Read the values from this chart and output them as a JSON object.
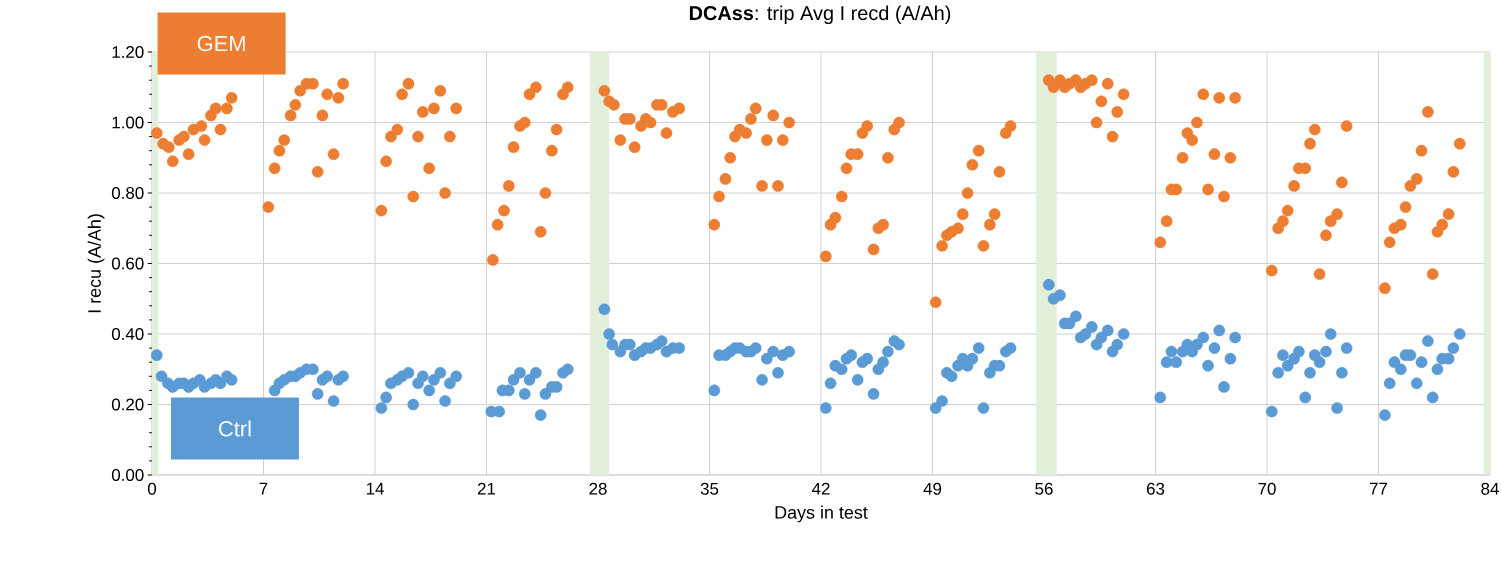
{
  "chart_data": {
    "type": "scatter",
    "title": "**DCAss**: trip Avg I recd (A/Ah)",
    "xlabel": "Days in test",
    "ylabel": "I recu (A/Ah)",
    "xlim": [
      0,
      84
    ],
    "xticks": [
      0,
      7,
      14,
      21,
      28,
      35,
      42,
      49,
      56,
      63,
      70,
      77,
      84
    ],
    "ylim": [
      0,
      1.2
    ],
    "yticks": [
      {
        "value": 0,
        "label": "0.00"
      },
      {
        "value": 0.2,
        "label": "0.20"
      },
      {
        "value": 0.4,
        "label": "0.40"
      },
      {
        "value": 0.6,
        "label": "0.60"
      },
      {
        "value": 0.8,
        "label": "0.80"
      },
      {
        "value": 1.0,
        "label": "1.00"
      },
      {
        "value": 1.2,
        "label": "1.20"
      }
    ],
    "grid": true,
    "marker": "circle",
    "bands": [
      {
        "axis": "x",
        "from": 0,
        "to": 0.4,
        "color": "#e2efda"
      },
      {
        "axis": "x",
        "from": 27.5,
        "to": 28.7,
        "color": "#e2efda"
      },
      {
        "axis": "x",
        "from": 55.5,
        "to": 56.8,
        "color": "#e2efda"
      },
      {
        "axis": "x",
        "from": 83.6,
        "to": 84,
        "color": "#e2efda"
      }
    ],
    "series": [
      {
        "name": "GEM",
        "color": "#ed7d31",
        "x": [
          0.3,
          0.7,
          1.05,
          1.3,
          1.7,
          2.0,
          2.3,
          2.6,
          3.1,
          3.3,
          3.7,
          4.0,
          4.3,
          4.7,
          5.0,
          7.3,
          7.7,
          8.0,
          8.3,
          8.7,
          9.0,
          9.3,
          9.7,
          10.1,
          10.4,
          10.7,
          11.0,
          11.4,
          11.7,
          12.0,
          14.4,
          14.7,
          15.0,
          15.4,
          15.7,
          16.1,
          16.4,
          16.7,
          17.0,
          17.4,
          17.7,
          18.1,
          18.4,
          18.7,
          19.1,
          21.4,
          21.7,
          22.1,
          22.4,
          22.7,
          23.1,
          23.4,
          23.7,
          24.1,
          24.4,
          24.7,
          25.1,
          25.4,
          25.8,
          26.1,
          28.4,
          28.7,
          29.0,
          29.4,
          29.7,
          30.0,
          30.3,
          30.7,
          31.0,
          31.3,
          31.7,
          32.0,
          32.3,
          32.7,
          33.1,
          35.3,
          35.6,
          36.0,
          36.3,
          36.6,
          36.9,
          37.3,
          37.6,
          37.9,
          38.3,
          38.6,
          39.0,
          39.3,
          39.6,
          40.0,
          42.3,
          42.6,
          42.9,
          43.3,
          43.6,
          43.9,
          44.3,
          44.6,
          44.9,
          45.3,
          45.6,
          45.9,
          46.2,
          46.6,
          46.9,
          49.2,
          49.6,
          49.9,
          50.2,
          50.6,
          50.9,
          51.2,
          51.5,
          51.9,
          52.2,
          52.6,
          52.9,
          53.2,
          53.6,
          53.9,
          56.3,
          56.6,
          57.0,
          57.3,
          57.6,
          58.0,
          58.3,
          58.6,
          59.0,
          59.3,
          59.6,
          60.0,
          60.3,
          60.6,
          61.0,
          63.3,
          63.7,
          64.0,
          64.3,
          64.7,
          65.0,
          65.3,
          65.6,
          66.0,
          66.3,
          66.7,
          67.0,
          67.3,
          67.7,
          68.0,
          70.3,
          70.7,
          71.0,
          71.3,
          71.7,
          72.0,
          72.4,
          72.7,
          73.0,
          73.3,
          73.7,
          74.0,
          74.4,
          74.7,
          75.0,
          77.4,
          77.7,
          78.0,
          78.4,
          78.7,
          79.0,
          79.4,
          79.7,
          80.1,
          80.4,
          80.7,
          81.0,
          81.4,
          81.7,
          82.1
        ],
        "values": [
          0.97,
          0.94,
          0.93,
          0.89,
          0.95,
          0.96,
          0.91,
          0.98,
          0.99,
          0.95,
          1.02,
          1.04,
          0.98,
          1.04,
          1.07,
          0.76,
          0.87,
          0.92,
          0.95,
          1.02,
          1.05,
          1.09,
          1.11,
          1.11,
          0.86,
          1.02,
          1.08,
          0.91,
          1.07,
          1.11,
          0.75,
          0.89,
          0.96,
          0.98,
          1.08,
          1.11,
          0.79,
          0.96,
          1.03,
          0.87,
          1.04,
          1.09,
          0.8,
          0.96,
          1.04,
          0.61,
          0.71,
          0.75,
          0.82,
          0.93,
          0.99,
          1.0,
          1.08,
          1.1,
          0.69,
          0.8,
          0.92,
          0.98,
          1.08,
          1.1,
          1.09,
          1.06,
          1.05,
          0.95,
          1.01,
          1.01,
          0.93,
          0.99,
          1.01,
          1.0,
          1.05,
          1.05,
          0.97,
          1.03,
          1.04,
          0.71,
          0.79,
          0.84,
          0.9,
          0.96,
          0.98,
          0.97,
          1.01,
          1.04,
          0.82,
          0.95,
          1.02,
          0.82,
          0.95,
          1.0,
          0.62,
          0.71,
          0.73,
          0.79,
          0.87,
          0.91,
          0.91,
          0.97,
          0.99,
          0.64,
          0.7,
          0.71,
          0.9,
          0.98,
          1.0,
          0.49,
          0.65,
          0.68,
          0.69,
          0.7,
          0.74,
          0.8,
          0.88,
          0.92,
          0.65,
          0.71,
          0.74,
          0.86,
          0.97,
          0.99,
          1.12,
          1.1,
          1.12,
          1.1,
          1.11,
          1.12,
          1.1,
          1.11,
          1.12,
          1.0,
          1.06,
          1.11,
          0.96,
          1.03,
          1.08,
          0.66,
          0.72,
          0.81,
          0.81,
          0.9,
          0.97,
          0.95,
          1.0,
          1.08,
          0.81,
          0.91,
          1.07,
          0.79,
          0.9,
          1.07,
          0.58,
          0.7,
          0.72,
          0.75,
          0.82,
          0.87,
          0.87,
          0.94,
          0.98,
          0.57,
          0.68,
          0.72,
          0.74,
          0.83,
          0.99,
          0.53,
          0.66,
          0.7,
          0.71,
          0.76,
          0.82,
          0.84,
          0.92,
          1.03,
          0.57,
          0.69,
          0.71,
          0.74,
          0.86,
          0.94
        ]
      },
      {
        "name": "Ctrl",
        "color": "#5b9bd5",
        "x": [
          0.3,
          0.6,
          1.0,
          1.3,
          1.7,
          2.0,
          2.3,
          2.6,
          3.0,
          3.3,
          3.7,
          4.0,
          4.3,
          4.7,
          5.0,
          7.7,
          8.0,
          8.3,
          8.7,
          9.0,
          9.3,
          9.7,
          10.1,
          10.4,
          10.7,
          11.0,
          11.4,
          11.7,
          12.0,
          14.4,
          14.7,
          15.0,
          15.4,
          15.7,
          16.1,
          16.4,
          16.7,
          17.0,
          17.4,
          17.7,
          18.1,
          18.4,
          18.7,
          19.1,
          21.3,
          21.8,
          22.0,
          22.4,
          22.7,
          23.1,
          23.4,
          23.7,
          24.1,
          24.4,
          24.7,
          25.1,
          25.4,
          25.8,
          26.1,
          28.4,
          28.7,
          28.9,
          29.4,
          29.7,
          30.0,
          30.3,
          30.7,
          31.0,
          31.3,
          31.7,
          32.0,
          32.3,
          32.7,
          33.1,
          35.3,
          35.6,
          36.0,
          36.3,
          36.6,
          36.9,
          37.3,
          37.6,
          37.9,
          38.3,
          38.6,
          39.0,
          39.3,
          39.6,
          40.0,
          42.3,
          42.6,
          42.9,
          43.3,
          43.6,
          43.9,
          44.3,
          44.6,
          44.9,
          45.3,
          45.6,
          45.9,
          46.2,
          46.6,
          46.9,
          49.2,
          49.6,
          49.9,
          50.2,
          50.6,
          50.9,
          51.2,
          51.5,
          51.9,
          52.2,
          52.6,
          52.9,
          53.2,
          53.6,
          53.9,
          56.3,
          56.6,
          57.0,
          57.3,
          57.6,
          58.0,
          58.3,
          58.6,
          59.0,
          59.3,
          59.6,
          60.0,
          60.3,
          60.6,
          61.0,
          63.3,
          63.7,
          64.0,
          64.3,
          64.7,
          65.0,
          65.3,
          65.6,
          66.0,
          66.3,
          66.7,
          67.0,
          67.3,
          67.7,
          68.0,
          70.3,
          70.7,
          71.0,
          71.3,
          71.7,
          72.0,
          72.4,
          72.7,
          73.0,
          73.3,
          73.7,
          74.0,
          74.4,
          74.7,
          75.0,
          77.4,
          77.7,
          78.0,
          78.4,
          78.7,
          79.0,
          79.4,
          79.7,
          80.1,
          80.4,
          80.7,
          81.0,
          81.4,
          81.7,
          82.1
        ],
        "values": [
          0.34,
          0.28,
          0.26,
          0.25,
          0.26,
          0.26,
          0.25,
          0.26,
          0.27,
          0.25,
          0.26,
          0.27,
          0.26,
          0.28,
          0.27,
          0.24,
          0.26,
          0.27,
          0.28,
          0.28,
          0.29,
          0.3,
          0.3,
          0.23,
          0.27,
          0.28,
          0.21,
          0.27,
          0.28,
          0.19,
          0.22,
          0.26,
          0.27,
          0.28,
          0.29,
          0.2,
          0.26,
          0.28,
          0.24,
          0.27,
          0.29,
          0.21,
          0.26,
          0.28,
          0.18,
          0.18,
          0.24,
          0.24,
          0.27,
          0.29,
          0.23,
          0.27,
          0.29,
          0.17,
          0.23,
          0.25,
          0.25,
          0.29,
          0.3,
          0.47,
          0.4,
          0.37,
          0.35,
          0.37,
          0.37,
          0.34,
          0.35,
          0.36,
          0.36,
          0.37,
          0.38,
          0.35,
          0.36,
          0.36,
          0.24,
          0.34,
          0.34,
          0.35,
          0.36,
          0.36,
          0.35,
          0.35,
          0.36,
          0.27,
          0.33,
          0.35,
          0.29,
          0.34,
          0.35,
          0.19,
          0.26,
          0.31,
          0.3,
          0.33,
          0.34,
          0.27,
          0.32,
          0.33,
          0.23,
          0.3,
          0.32,
          0.35,
          0.38,
          0.37,
          0.19,
          0.21,
          0.29,
          0.28,
          0.31,
          0.33,
          0.31,
          0.33,
          0.36,
          0.19,
          0.29,
          0.31,
          0.31,
          0.35,
          0.36,
          0.54,
          0.5,
          0.51,
          0.43,
          0.43,
          0.45,
          0.39,
          0.4,
          0.42,
          0.37,
          0.39,
          0.41,
          0.35,
          0.37,
          0.4,
          0.22,
          0.32,
          0.35,
          0.32,
          0.35,
          0.37,
          0.35,
          0.37,
          0.39,
          0.31,
          0.36,
          0.41,
          0.25,
          0.33,
          0.39,
          0.18,
          0.29,
          0.34,
          0.31,
          0.33,
          0.35,
          0.22,
          0.29,
          0.34,
          0.32,
          0.35,
          0.4,
          0.19,
          0.29,
          0.36,
          0.17,
          0.26,
          0.32,
          0.3,
          0.34,
          0.34,
          0.26,
          0.32,
          0.38,
          0.22,
          0.3,
          0.33,
          0.33,
          0.36,
          0.4
        ]
      }
    ]
  }
}
